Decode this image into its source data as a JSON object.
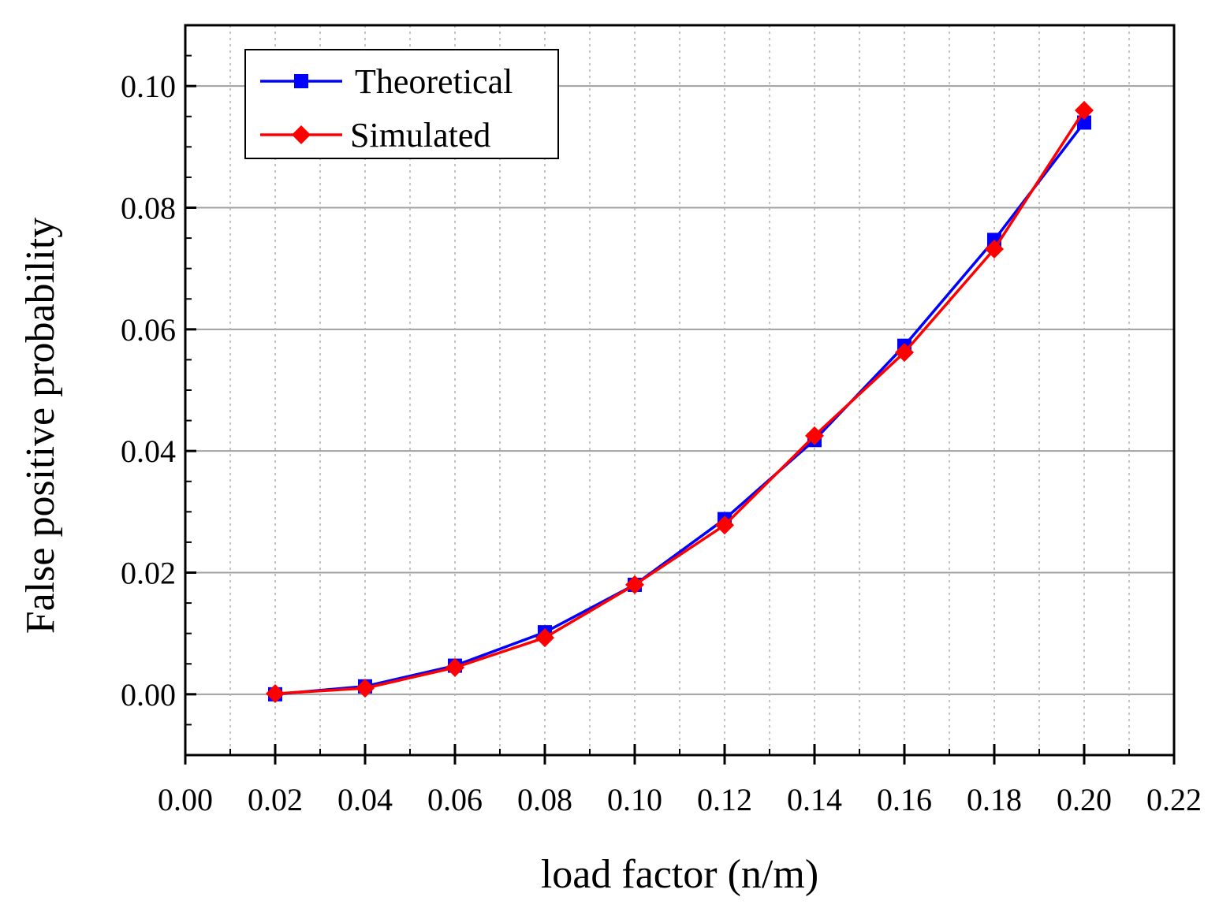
{
  "chart_data": {
    "type": "line",
    "title": "",
    "xlabel": "load factor (n/m)",
    "ylabel": "False positive probability",
    "xlim": [
      0.0,
      0.22
    ],
    "ylim": [
      -0.01,
      0.11
    ],
    "xticks": [
      "0.00",
      "0.02",
      "0.04",
      "0.06",
      "0.08",
      "0.10",
      "0.12",
      "0.14",
      "0.16",
      "0.18",
      "0.20",
      "0.22"
    ],
    "yticks": [
      "0.00",
      "0.02",
      "0.04",
      "0.06",
      "0.08",
      "0.10"
    ],
    "grid": true,
    "legend_position": "top-left",
    "x": [
      0.02,
      0.04,
      0.06,
      0.08,
      0.1,
      0.12,
      0.14,
      0.16,
      0.18,
      0.2
    ],
    "series": [
      {
        "name": "Theoretical",
        "color": "#0000ff",
        "marker": "square",
        "values": [
          0.0,
          0.0013,
          0.0047,
          0.0102,
          0.018,
          0.0288,
          0.0418,
          0.0573,
          0.0747,
          0.094
        ]
      },
      {
        "name": "Simulated",
        "color": "#ff0000",
        "marker": "diamond",
        "values": [
          0.0001,
          0.001,
          0.0044,
          0.0093,
          0.018,
          0.0278,
          0.0425,
          0.0562,
          0.0732,
          0.096
        ]
      }
    ]
  }
}
